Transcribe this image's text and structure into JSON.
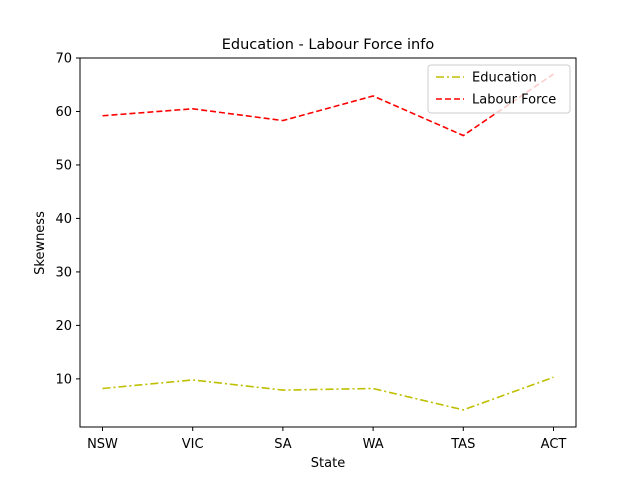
{
  "chart_data": {
    "type": "line",
    "title": "Education - Labour Force info",
    "xlabel": "State",
    "ylabel": "Skewness",
    "categories": [
      "NSW",
      "VIC",
      "SA",
      "WA",
      "TAS",
      "ACT"
    ],
    "ylim": [
      1,
      70
    ],
    "yticks": [
      10,
      20,
      30,
      40,
      50,
      60,
      70
    ],
    "grid": false,
    "legend_position": "top-right",
    "series": [
      {
        "name": "Education",
        "color": "#bfbf00",
        "linestyle": "dashdot",
        "values": [
          8.2,
          9.8,
          7.9,
          8.2,
          4.2,
          10.3
        ]
      },
      {
        "name": "Labour Force",
        "color": "#ff0000",
        "linestyle": "dashed",
        "values": [
          59.2,
          60.5,
          58.3,
          62.9,
          55.5,
          67.0
        ]
      }
    ]
  }
}
